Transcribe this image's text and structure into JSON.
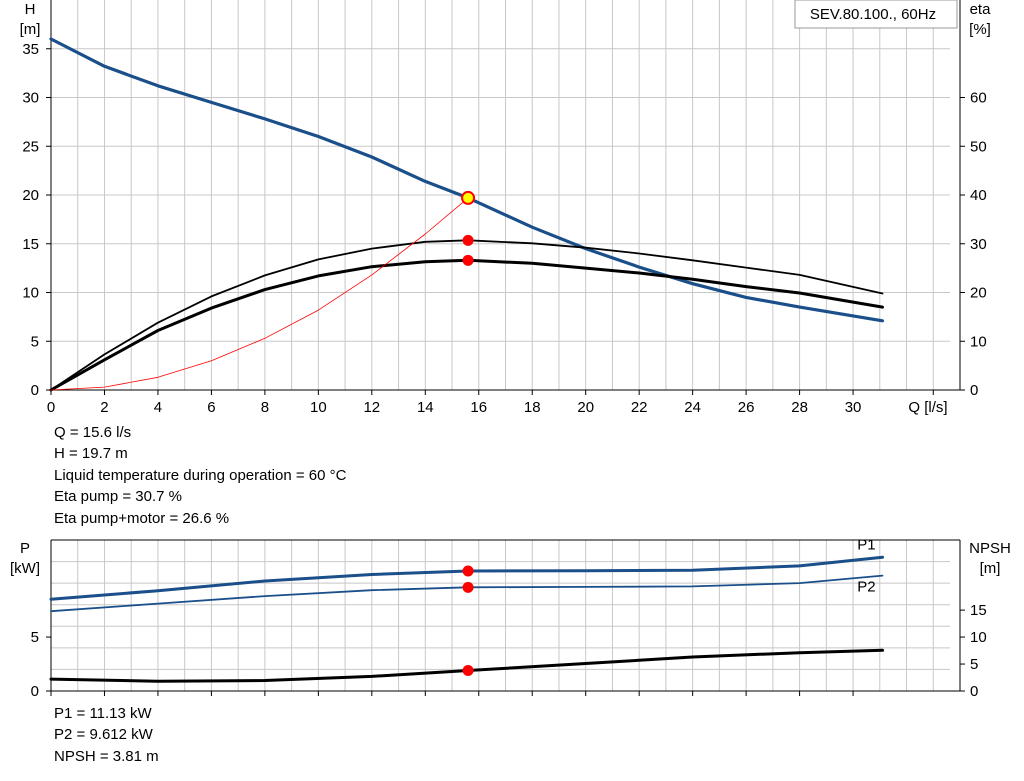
{
  "pump_title": "SEV.80.100., 60Hz",
  "info_top": [
    "Q = 15.6 l/s",
    "H = 19.7 m",
    "Liquid temperature during operation = 60 °C",
    "Eta pump = 30.7 %",
    "Eta pump+motor = 26.6 %"
  ],
  "info_bottom": [
    "P1 = 11.13 kW",
    "P2 = 9.612 kW",
    "NPSH = 3.81 m"
  ],
  "colors": {
    "blue": "#1a4f8a",
    "black": "#000000",
    "red": "#ff0000",
    "grid": "#c8c8c8",
    "duty_fill": "#ffff00"
  },
  "chart_data": [
    {
      "type": "line",
      "title": "SEV.80.100., 60Hz",
      "xlabel": "Q [l/s]",
      "ylabel_left": "H\n[m]",
      "ylabel_right": "eta\n[%]",
      "xlim": [
        0,
        34
      ],
      "ylim_left": [
        0,
        40
      ],
      "ylim_right": [
        0,
        80
      ],
      "x_ticks": [
        0,
        2,
        4,
        6,
        8,
        10,
        12,
        14,
        16,
        18,
        20,
        22,
        24,
        26,
        28,
        30
      ],
      "y_left_ticks": [
        0,
        5,
        10,
        15,
        20,
        25,
        30,
        35
      ],
      "y_right_ticks": [
        0,
        10,
        20,
        30,
        40,
        50,
        60
      ],
      "grid": true,
      "series": [
        {
          "axis": "left",
          "color": "#1a4f8a",
          "width": 3.2,
          "points": [
            [
              0,
              36
            ],
            [
              2,
              33.2
            ],
            [
              4,
              31.2
            ],
            [
              6,
              29.5
            ],
            [
              8,
              27.8
            ],
            [
              10,
              26
            ],
            [
              12,
              23.9
            ],
            [
              14,
              21.4
            ],
            [
              15.6,
              19.7
            ],
            [
              18,
              16.7
            ],
            [
              20,
              14.5
            ],
            [
              22,
              12.6
            ],
            [
              24,
              10.9
            ],
            [
              26,
              9.5
            ],
            [
              28,
              8.5
            ],
            [
              31.1,
              7.1
            ]
          ]
        },
        {
          "axis": "right",
          "color": "#000000",
          "width": 1.8,
          "points": [
            [
              0,
              0
            ],
            [
              2,
              7.3
            ],
            [
              4,
              13.8
            ],
            [
              6,
              19.2
            ],
            [
              8,
              23.5
            ],
            [
              10,
              26.8
            ],
            [
              12,
              29
            ],
            [
              14,
              30.4
            ],
            [
              15.6,
              30.7
            ],
            [
              18,
              30.1
            ],
            [
              20,
              29.2
            ],
            [
              22,
              28
            ],
            [
              24,
              26.6
            ],
            [
              26,
              25.1
            ],
            [
              28,
              23.6
            ],
            [
              31.1,
              19.8
            ]
          ]
        },
        {
          "axis": "right",
          "color": "#000000",
          "width": 3,
          "points": [
            [
              0,
              0
            ],
            [
              2,
              6.2
            ],
            [
              4,
              12.2
            ],
            [
              6,
              16.8
            ],
            [
              8,
              20.6
            ],
            [
              10,
              23.4
            ],
            [
              12,
              25.3
            ],
            [
              14,
              26.3
            ],
            [
              15.6,
              26.6
            ],
            [
              18,
              26
            ],
            [
              20,
              25
            ],
            [
              22,
              24
            ],
            [
              24,
              22.7
            ],
            [
              26,
              21.2
            ],
            [
              28,
              19.9
            ],
            [
              31.1,
              17
            ]
          ]
        },
        {
          "axis": "left",
          "color": "#ff0000",
          "width": 0.8,
          "points": [
            [
              0,
              0
            ],
            [
              2,
              0.3
            ],
            [
              4,
              1.3
            ],
            [
              6,
              3
            ],
            [
              8,
              5.3
            ],
            [
              10,
              8.2
            ],
            [
              12,
              11.8
            ],
            [
              14,
              16
            ],
            [
              15.6,
              19.7
            ]
          ]
        }
      ],
      "markers": [
        {
          "axis": "left",
          "x": 15.6,
          "y": 19.7,
          "style": "duty"
        },
        {
          "axis": "right",
          "x": 15.6,
          "y": 30.7,
          "style": "dot"
        },
        {
          "axis": "right",
          "x": 15.6,
          "y": 26.6,
          "style": "dot"
        }
      ]
    },
    {
      "type": "line",
      "ylabel_left": "P\n[kW]",
      "ylabel_right": "NPSH\n[m]",
      "xlim": [
        0,
        34
      ],
      "ylim_left": [
        0,
        14
      ],
      "ylim_right": [
        0,
        28
      ],
      "x_ticks": [
        0,
        2,
        4,
        6,
        8,
        10,
        12,
        14,
        16,
        18,
        20,
        22,
        24,
        26,
        28,
        30
      ],
      "y_left_ticks": [
        0,
        5
      ],
      "y_right_ticks": [
        0,
        5,
        10,
        15
      ],
      "grid": true,
      "series": [
        {
          "name": "P1",
          "axis": "left",
          "color": "#1a4f8a",
          "width": 3,
          "points": [
            [
              0,
              8.5
            ],
            [
              4,
              9.3
            ],
            [
              8,
              10.2
            ],
            [
              12,
              10.8
            ],
            [
              15.6,
              11.13
            ],
            [
              20,
              11.15
            ],
            [
              24,
              11.2
            ],
            [
              28,
              11.6
            ],
            [
              31.1,
              12.4
            ]
          ]
        },
        {
          "name": "P2",
          "axis": "left",
          "color": "#1a4f8a",
          "width": 1.8,
          "points": [
            [
              0,
              7.4
            ],
            [
              4,
              8.1
            ],
            [
              8,
              8.8
            ],
            [
              12,
              9.35
            ],
            [
              15.6,
              9.612
            ],
            [
              20,
              9.65
            ],
            [
              24,
              9.7
            ],
            [
              28,
              10
            ],
            [
              31.1,
              10.7
            ]
          ]
        },
        {
          "axis": "right",
          "color": "#000000",
          "width": 3,
          "points": [
            [
              0,
              2.2
            ],
            [
              4,
              1.8
            ],
            [
              8,
              1.95
            ],
            [
              12,
              2.7
            ],
            [
              15.6,
              3.81
            ],
            [
              20,
              5.1
            ],
            [
              24,
              6.3
            ],
            [
              28,
              7.1
            ],
            [
              31.1,
              7.55
            ]
          ]
        }
      ],
      "markers": [
        {
          "axis": "left",
          "x": 15.6,
          "y": 11.13,
          "style": "dot"
        },
        {
          "axis": "left",
          "x": 15.6,
          "y": 9.612,
          "style": "dot"
        },
        {
          "axis": "right",
          "x": 15.6,
          "y": 3.81,
          "style": "dot"
        }
      ]
    }
  ]
}
